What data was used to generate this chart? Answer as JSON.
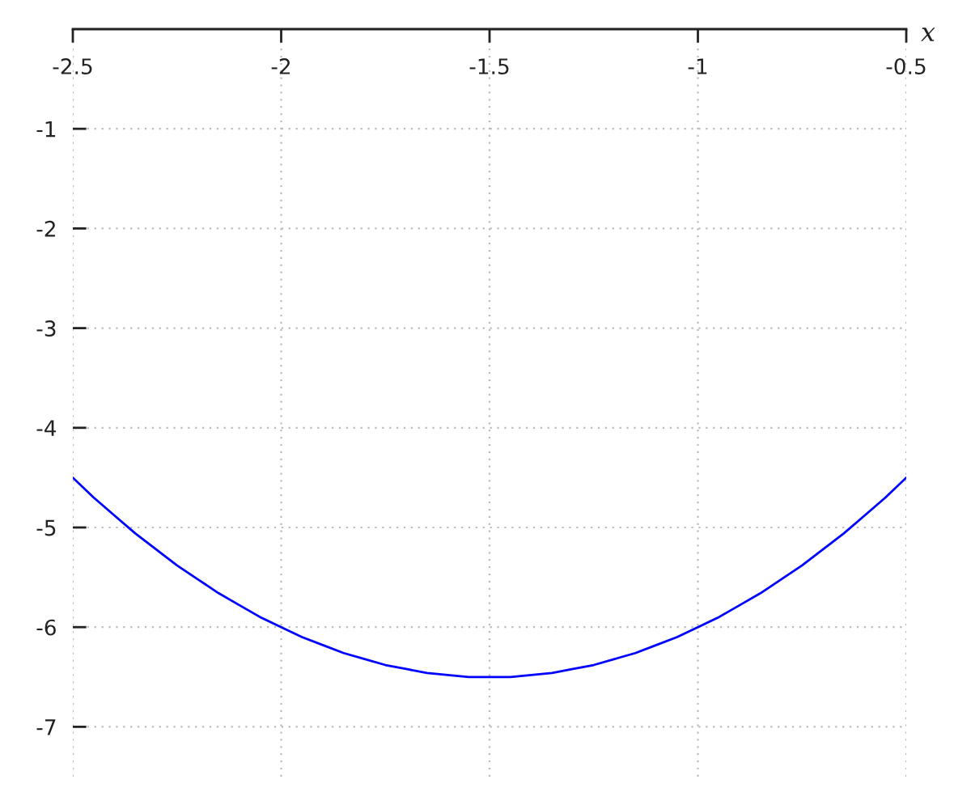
{
  "chart_data": {
    "type": "line",
    "xlabel": "x",
    "x": [
      -2.5,
      -2.45,
      -2.4,
      -2.35,
      -2.3,
      -2.25,
      -2.2,
      -2.15,
      -2.1,
      -2.05,
      -2,
      -1.95,
      -1.9,
      -1.85,
      -1.8,
      -1.75,
      -1.7,
      -1.65,
      -1.6,
      -1.55,
      -1.5,
      -1.45,
      -1.4,
      -1.35,
      -1.3,
      -1.25,
      -1.2,
      -1.15,
      -1.1,
      -1.05,
      -1,
      -0.95,
      -0.9,
      -0.85,
      -0.8,
      -0.75,
      -0.7,
      -0.65,
      -0.6,
      -0.55,
      -0.5
    ],
    "series": [
      {
        "color": "#0000ff",
        "values": [
          -4.5,
          -4.7,
          -4.88,
          -5.06,
          -5.22,
          -5.38,
          -5.52,
          -5.66,
          -5.78,
          -5.9,
          -6,
          -6.1,
          -6.18,
          -6.26,
          -6.32,
          -6.38,
          -6.42,
          -6.46,
          -6.48,
          -6.5,
          -6.5,
          -6.5,
          -6.48,
          -6.46,
          -6.42,
          -6.38,
          -6.32,
          -6.26,
          -6.18,
          -6.1,
          -6,
          -5.9,
          -5.78,
          -5.66,
          -5.52,
          -5.38,
          -5.22,
          -5.06,
          -4.88,
          -4.7,
          -4.5
        ]
      }
    ],
    "xlim": [
      -2.5,
      -0.5
    ],
    "xticks": [
      -2.5,
      -2,
      -1.5,
      -1,
      -0.5
    ],
    "ylim": [
      -7.5,
      0
    ],
    "yticks": [
      -1,
      -2,
      -3,
      -4,
      -5,
      -6,
      -7
    ],
    "grid": true
  }
}
